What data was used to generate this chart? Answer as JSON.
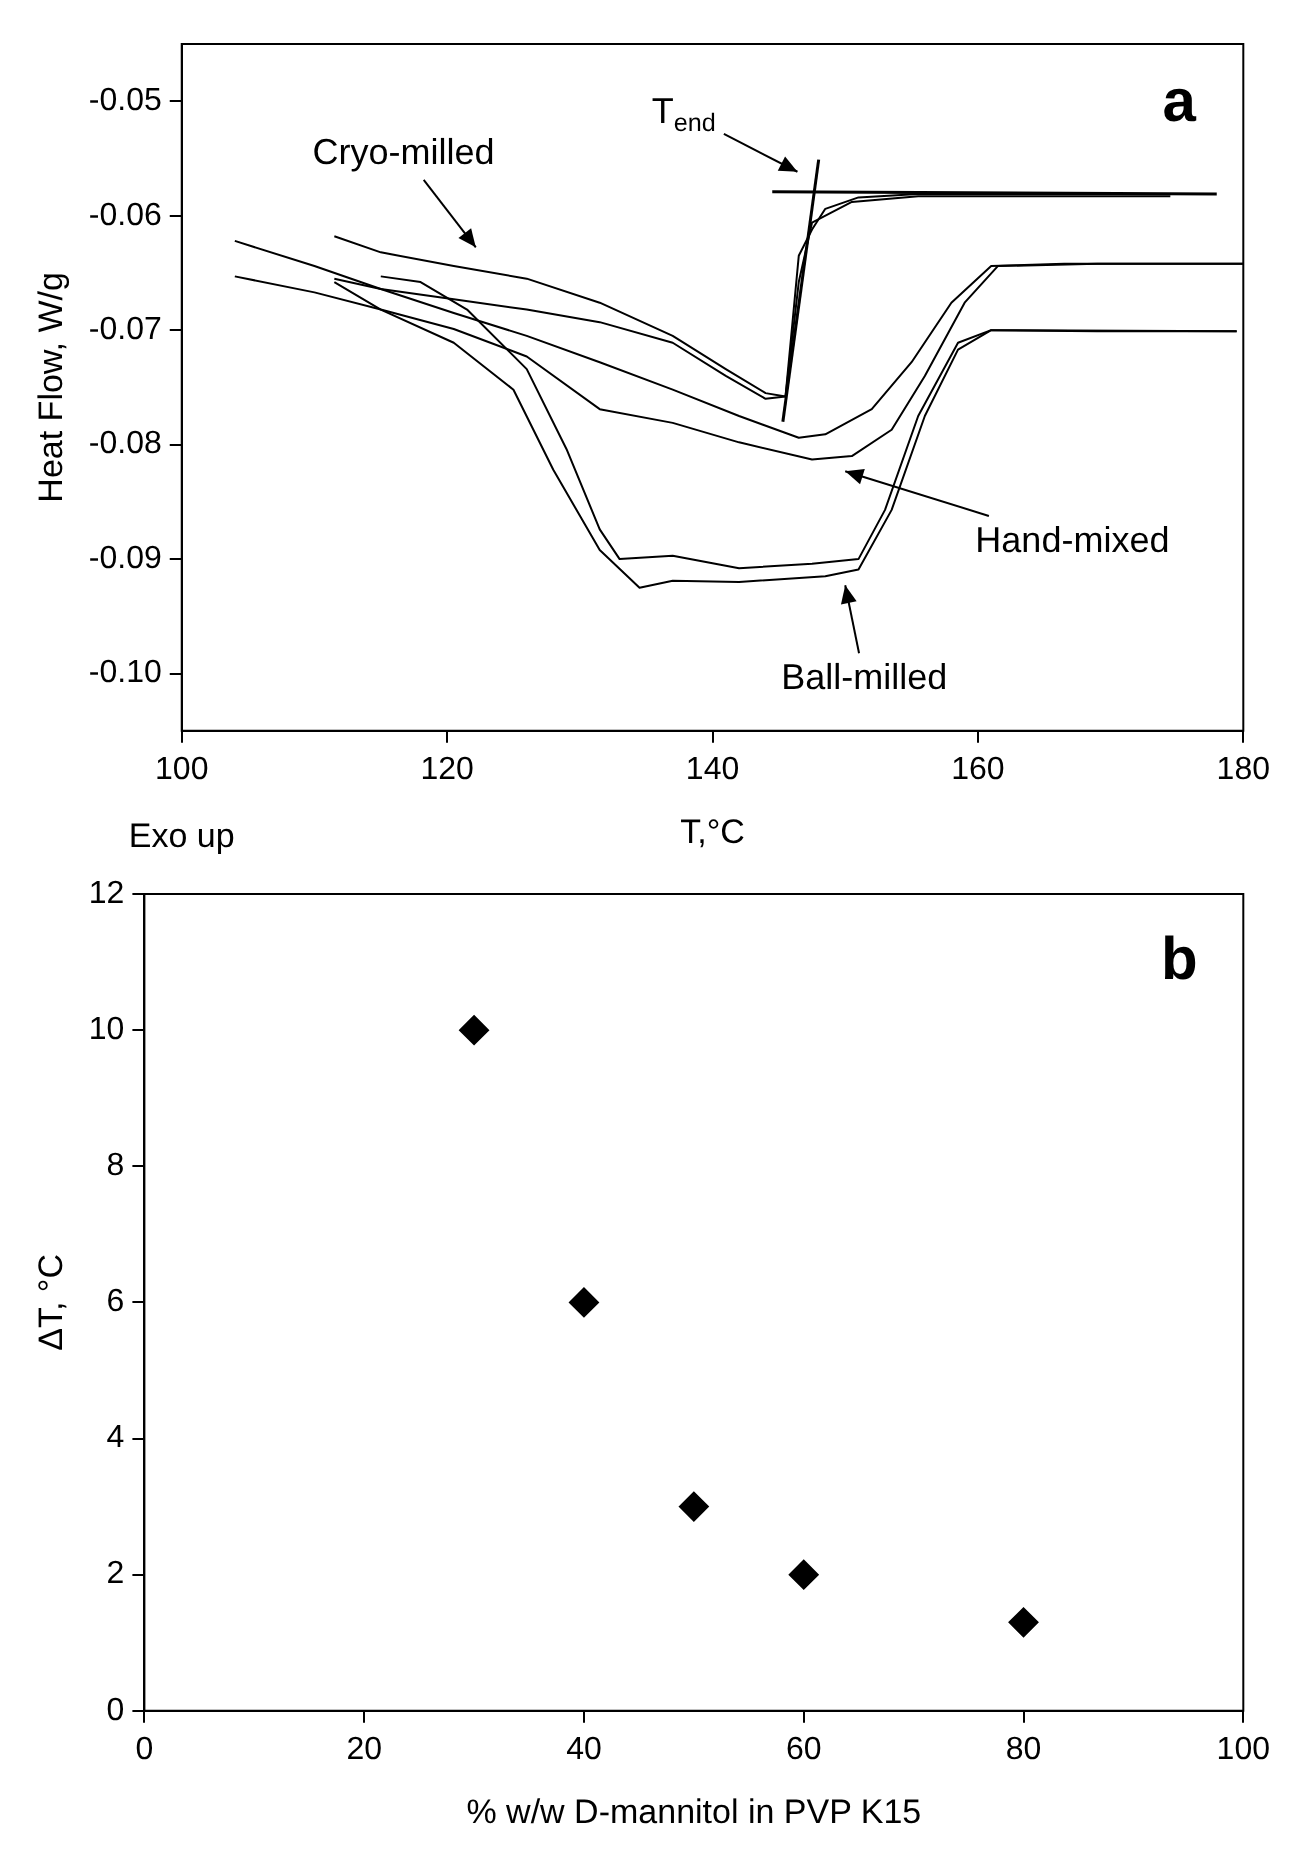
{
  "chart_data": [
    {
      "type": "line",
      "xlabel": "T,°C",
      "ylabel": "Heat Flow, W/g",
      "xlim": [
        100,
        180
      ],
      "xticks": [
        100,
        120,
        140,
        160,
        180
      ],
      "ylim": [
        -0.105,
        -0.045
      ],
      "yticks": [
        -0.05,
        -0.06,
        -0.07,
        -0.08,
        -0.09,
        {
          "value": -0.1,
          "label": "-0.10"
        }
      ],
      "grid": false,
      "legend": false,
      "line_style": "solid",
      "series": [
        {
          "color": "#000000",
          "x": [
            111.5,
            115,
            120.5,
            126,
            131.5,
            137,
            141,
            144,
            145.5,
            146.5,
            147.5,
            148.5,
            151,
            155.5,
            164,
            174.5
          ],
          "values": [
            -0.0618,
            -0.0632,
            -0.0644,
            -0.0655,
            -0.0676,
            -0.0705,
            -0.0734,
            -0.0755,
            -0.0758,
            -0.0635,
            -0.0612,
            -0.0594,
            -0.0584,
            -0.0581,
            -0.0581,
            -0.0581
          ]
        },
        {
          "color": "#000000",
          "x": [
            111.5,
            115,
            120.5,
            126,
            131.5,
            137,
            141,
            144,
            145.5,
            146.5,
            147.5,
            150.5,
            155.5,
            174.5
          ],
          "values": [
            -0.0655,
            -0.0664,
            -0.0673,
            -0.0682,
            -0.0693,
            -0.0711,
            -0.074,
            -0.076,
            -0.0758,
            -0.0658,
            -0.0606,
            -0.0588,
            -0.0583,
            -0.0583
          ]
        },
        {
          "color": "#000000",
          "x": [
            104,
            110,
            115,
            120.5,
            126,
            131.5,
            137,
            142,
            146.5,
            148.5,
            152,
            155,
            158,
            161,
            166.5,
            180
          ],
          "values": [
            -0.0622,
            -0.0644,
            -0.0664,
            -0.0685,
            -0.0705,
            -0.0728,
            -0.0752,
            -0.0775,
            -0.0794,
            -0.0791,
            -0.0769,
            -0.0728,
            -0.0676,
            -0.0644,
            -0.0642,
            -0.0642
          ]
        },
        {
          "color": "#000000",
          "x": [
            104,
            110,
            115,
            120.5,
            126,
            131.5,
            137,
            142,
            147.5,
            150.5,
            153.5,
            156,
            159,
            161.5,
            169,
            180
          ],
          "values": [
            -0.0653,
            -0.0667,
            -0.0682,
            -0.0699,
            -0.0723,
            -0.0769,
            -0.0781,
            -0.0798,
            -0.0813,
            -0.081,
            -0.0787,
            -0.074,
            -0.0676,
            -0.0644,
            -0.0642,
            -0.0642
          ]
        },
        {
          "color": "#000000",
          "x": [
            115,
            118,
            121.5,
            126,
            129,
            131.5,
            133,
            137,
            142,
            147.5,
            151,
            153,
            155.5,
            158.5,
            161,
            169,
            179.5
          ],
          "values": [
            -0.0653,
            -0.0658,
            -0.0682,
            -0.0734,
            -0.0804,
            -0.0874,
            -0.09,
            -0.0897,
            -0.0908,
            -0.0904,
            -0.09,
            -0.0857,
            -0.0775,
            -0.0711,
            -0.07,
            -0.0701,
            -0.0701
          ]
        },
        {
          "color": "#000000",
          "x": [
            111.5,
            115,
            120.5,
            125,
            128,
            131.5,
            134.5,
            137,
            142,
            148.5,
            151,
            153.5,
            156,
            158.5,
            161,
            179.5
          ],
          "values": [
            -0.0658,
            -0.0682,
            -0.0711,
            -0.0752,
            -0.0822,
            -0.0892,
            -0.0925,
            -0.0919,
            -0.092,
            -0.0915,
            -0.0909,
            -0.0857,
            -0.0775,
            -0.0717,
            -0.07,
            -0.0701
          ]
        },
        {
          "type": "line",
          "color": "#000000",
          "x": [
            145.3,
            148
          ],
          "values": [
            -0.078,
            -0.0551
          ]
        },
        {
          "type": "line",
          "color": "#000000",
          "x": [
            144.5,
            178
          ],
          "values": [
            -0.0579,
            -0.0581
          ]
        }
      ],
      "annotations": [
        "a",
        "Exo up",
        "Cryo-milled",
        "T$_{end}$",
        "Hand-mixed",
        "Ball-milled"
      ]
    },
    {
      "type": "scatter",
      "xlabel": "% w/w D-mannitol in PVP K15",
      "ylabel": "ΔT, °C",
      "xlim": [
        0,
        100
      ],
      "xticks": [
        0,
        20,
        40,
        60,
        80,
        100
      ],
      "ylim": [
        0,
        12
      ],
      "yticks": [
        0,
        2,
        4,
        6,
        8,
        10,
        12
      ],
      "grid": false,
      "legend": false,
      "marker": "diamond",
      "series": [
        {
          "color": "#000000",
          "x": [
            30,
            40,
            50,
            60,
            80
          ],
          "values": [
            10,
            6,
            3,
            2,
            1.3
          ]
        }
      ],
      "annotations": [
        "b"
      ]
    }
  ]
}
